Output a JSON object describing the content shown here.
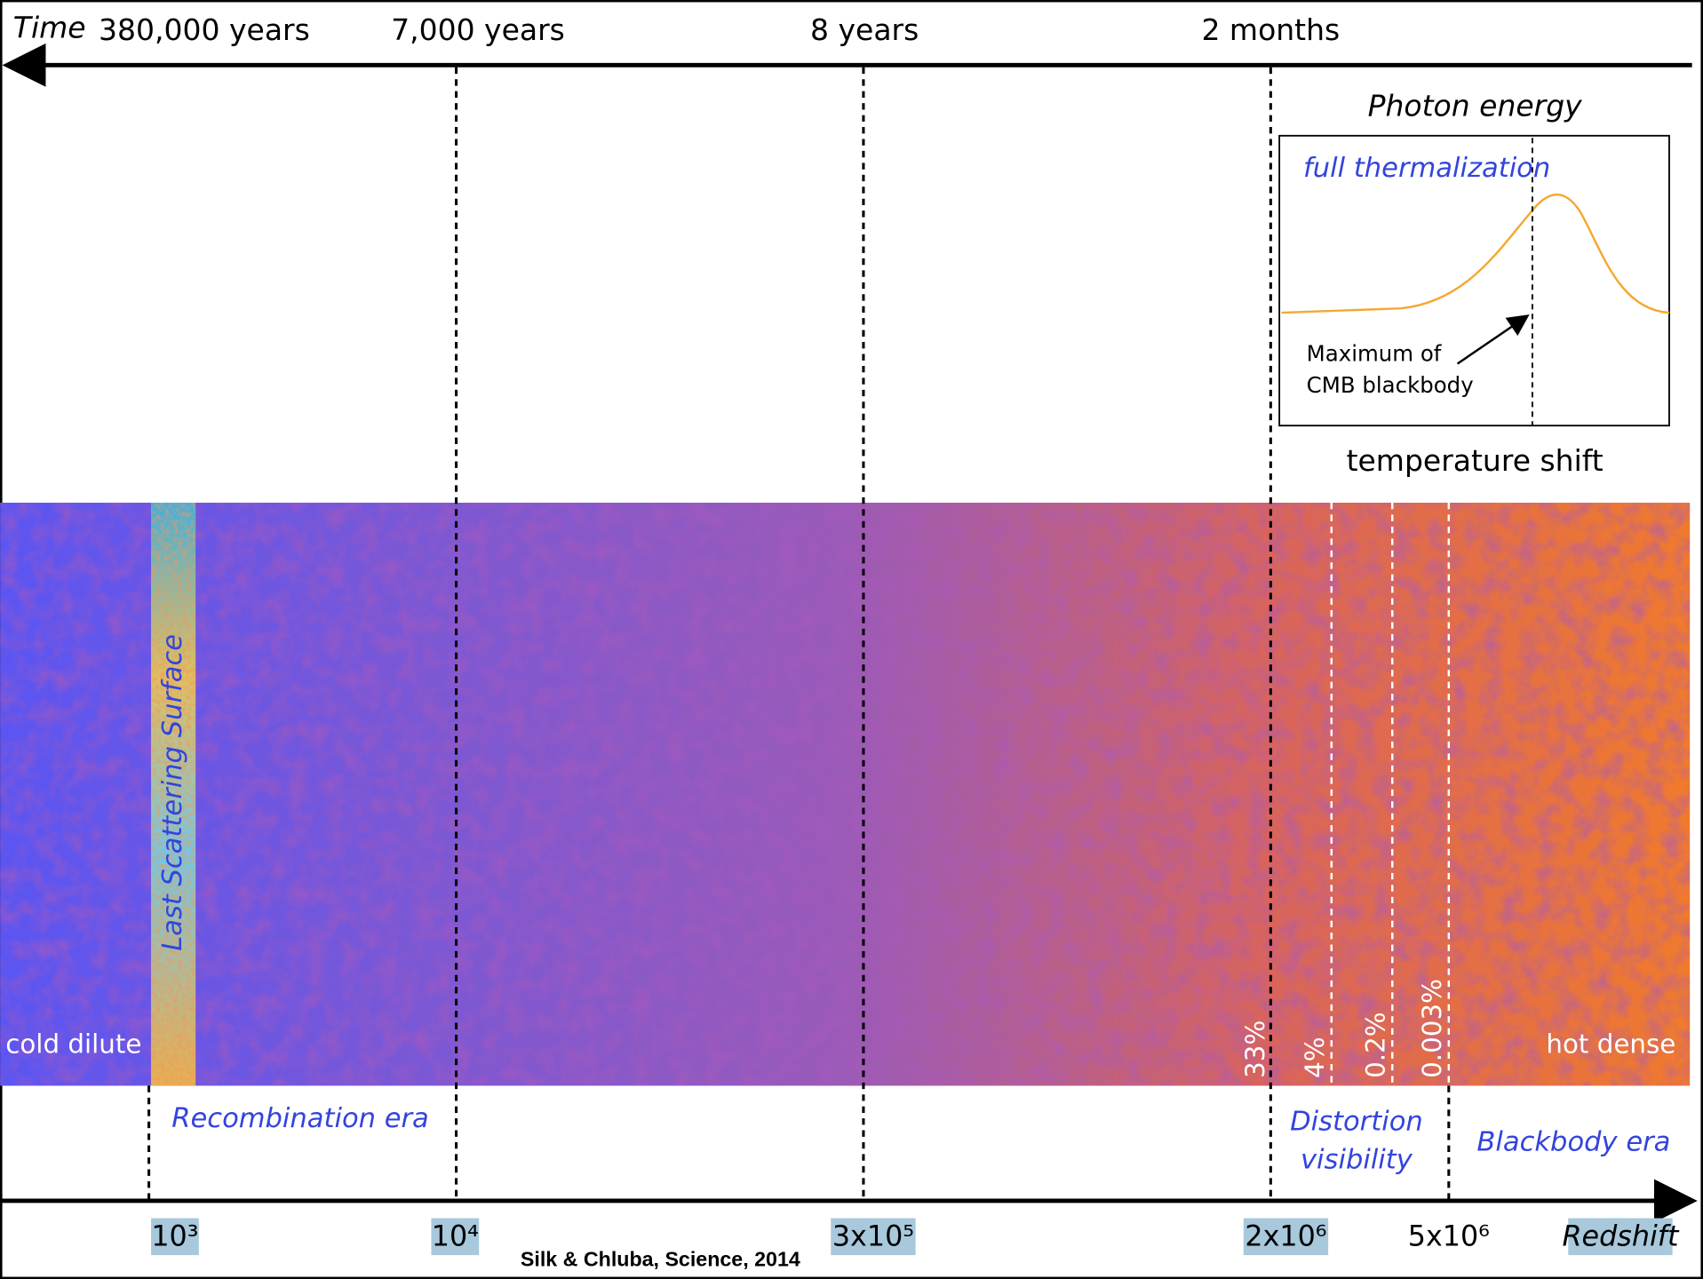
{
  "top_axis": {
    "labels": [
      "Time",
      "380,000 years",
      "7,000 years",
      "8 years",
      "2 months"
    ]
  },
  "inset": {
    "title": "Photon energy",
    "curve_label": "full thermalization",
    "annotation": [
      "Maximum of",
      "CMB blackbody"
    ],
    "caption": "temperature shift"
  },
  "band": {
    "strip_label": "Last Scattering Surface",
    "left_label": "cold dilute",
    "right_label": "hot dense",
    "percentages": [
      "33%",
      "4%",
      "0.2%",
      "0.003%"
    ]
  },
  "eras": [
    [
      "Recombination era"
    ],
    [
      "Distortion",
      "visibility"
    ],
    [
      "Blackbody era"
    ]
  ],
  "redshift": {
    "labels": [
      "10³",
      "10⁴",
      "3x10⁵",
      "2x10⁶",
      "5x10⁶",
      "Redshift"
    ]
  },
  "citation": "Silk & Chluba, Science, 2014"
}
